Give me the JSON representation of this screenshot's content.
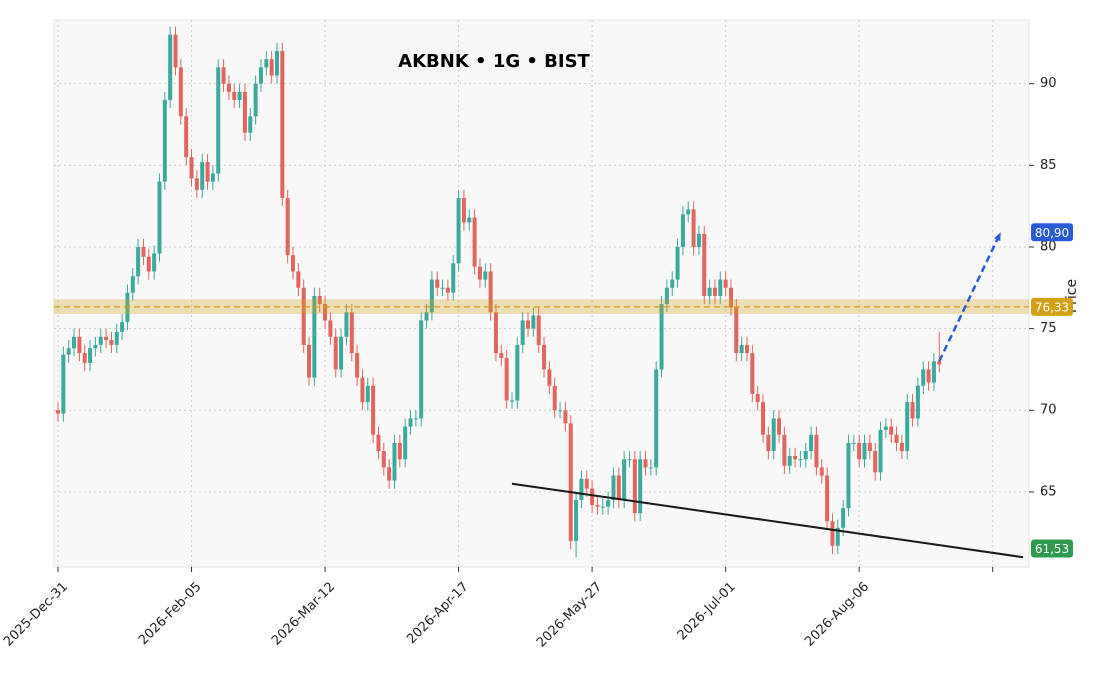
{
  "chart_data": {
    "type": "candlestick",
    "title": "AKBNK • 1G • BIST",
    "ylabel": "Price",
    "up_color": "#3ba99c",
    "down_color": "#e0655f",
    "grid": true,
    "xlim": [
      -0.75,
      181.8
    ],
    "ylim": [
      60.4,
      93.9
    ],
    "yticks": [
      65,
      70,
      75,
      80,
      85,
      90
    ],
    "xticks": [
      0,
      25,
      50,
      75,
      100,
      125,
      150,
      175
    ],
    "categories": [
      "2025-Dec-31",
      null,
      null,
      null,
      null,
      null,
      null,
      null,
      null,
      null,
      null,
      null,
      null,
      null,
      null,
      null,
      null,
      null,
      null,
      null,
      null,
      null,
      null,
      null,
      null,
      "2026-Feb-05",
      null,
      null,
      null,
      null,
      null,
      null,
      null,
      null,
      null,
      null,
      null,
      null,
      null,
      null,
      null,
      null,
      null,
      null,
      null,
      null,
      null,
      null,
      null,
      null,
      "2026-Mar-12",
      null,
      null,
      null,
      null,
      null,
      null,
      null,
      null,
      null,
      null,
      null,
      null,
      null,
      null,
      null,
      null,
      null,
      null,
      null,
      null,
      null,
      null,
      null,
      null,
      "2026-Apr-17",
      null,
      null,
      null,
      null,
      null,
      null,
      null,
      null,
      null,
      null,
      null,
      null,
      null,
      null,
      null,
      null,
      null,
      null,
      null,
      null,
      null,
      null,
      null,
      null,
      "2026-May-27",
      null,
      null,
      null,
      null,
      null,
      null,
      null,
      null,
      null,
      null,
      null,
      null,
      null,
      null,
      null,
      null,
      null,
      null,
      null,
      null,
      null,
      null,
      null,
      null,
      "2026-Jul-01",
      null,
      null,
      null,
      null,
      null,
      null,
      null,
      null,
      null,
      null,
      null,
      null,
      null,
      null,
      null,
      null,
      null,
      null,
      null,
      null,
      null,
      null,
      null,
      null,
      "2026-Aug-06",
      null,
      null,
      null,
      null,
      null,
      null,
      null,
      null,
      null,
      null,
      null,
      null,
      null,
      null,
      null
    ],
    "open": [
      70,
      69.8,
      73.4,
      73.8,
      74.5,
      73.5,
      72.9,
      73.8,
      74,
      74.5,
      74.3,
      74,
      74.8,
      75.4,
      77.2,
      78.2,
      80,
      79.4,
      78.5,
      79.6,
      84,
      89,
      93,
      91,
      88,
      85.5,
      84.2,
      83.5,
      85.2,
      84,
      84.5,
      91,
      90,
      89.5,
      89,
      89.5,
      87,
      88,
      90,
      91,
      91.5,
      90.5,
      92,
      83,
      79.5,
      78.5,
      77.5,
      74,
      72,
      77,
      76.5,
      75.5,
      74.5,
      72.5,
      74.5,
      76,
      73.5,
      72,
      70.5,
      71.5,
      68.5,
      67.5,
      66.5,
      65.7,
      68,
      67,
      69,
      69.5,
      69.5,
      75.5,
      76,
      78,
      77.5,
      77.5,
      77.2,
      79,
      83,
      81.5,
      81.8,
      78.8,
      78,
      78.5,
      76,
      73.5,
      73.2,
      70.6,
      70.6,
      74,
      75.5,
      75,
      75.8,
      74,
      72.5,
      71.5,
      70,
      70,
      69.2,
      62,
      64.5,
      65.8,
      65.2,
      64.2,
      64.1,
      64.1,
      64.5,
      66,
      64.5,
      67,
      67,
      63.7,
      67,
      66.5,
      66.5,
      72.5,
      76.5,
      77.5,
      78,
      80,
      82,
      82.3,
      80,
      80.8,
      77,
      77.5,
      77,
      78,
      77.5,
      76.3,
      73.5,
      74,
      73.5,
      71,
      70.5,
      68.5,
      67.5,
      69.5,
      68.5,
      66.6,
      67.2,
      67,
      67,
      67.5,
      68.5,
      66.5,
      66,
      63.2,
      61.7,
      62.8,
      64,
      68,
      68,
      67,
      68,
      67.5,
      66.2,
      68.8,
      69,
      68.5,
      68,
      67.5,
      70.5,
      69.5,
      71.5,
      72.5,
      71.7,
      73
    ],
    "high": [
      70.5,
      73.9,
      74.3,
      75,
      75,
      74,
      74.3,
      74.5,
      75,
      75,
      74.8,
      75.3,
      75.9,
      77.7,
      78.7,
      80.5,
      80.5,
      79.9,
      80.1,
      84.5,
      89.5,
      93.5,
      93.5,
      91.5,
      88.5,
      86,
      84.7,
      85.7,
      85.7,
      85,
      91.5,
      91.5,
      90.5,
      90,
      90,
      90,
      88.5,
      90.5,
      91.5,
      92,
      92,
      92.5,
      92.5,
      83.5,
      80,
      79,
      78,
      74.5,
      77.5,
      77.5,
      77,
      76,
      75,
      75,
      76.5,
      76.5,
      74,
      72.5,
      72,
      72,
      69,
      68,
      67,
      68.5,
      68.5,
      69.5,
      70,
      70,
      76,
      76.5,
      78.5,
      78.5,
      78,
      78,
      79.5,
      83.5,
      83.5,
      82.3,
      82.3,
      79.3,
      79,
      79,
      76.5,
      74,
      73.7,
      71.1,
      74.5,
      76,
      76,
      76.3,
      76.3,
      74.5,
      73,
      72,
      70.5,
      70.5,
      69.7,
      65,
      66.3,
      66.3,
      65.7,
      64.7,
      64.6,
      65,
      66.5,
      66.5,
      67.5,
      67.5,
      67.5,
      67.5,
      67.5,
      67,
      73,
      77,
      78,
      78.5,
      80.5,
      82.5,
      82.8,
      82.8,
      81.3,
      81.3,
      78,
      78,
      78.5,
      78.5,
      78,
      76.8,
      74.5,
      74.5,
      74,
      71.5,
      71,
      69,
      70,
      70,
      69,
      67.7,
      67.7,
      67.5,
      68,
      69,
      69,
      67,
      66.5,
      63.7,
      63.3,
      64.5,
      68.5,
      68.5,
      68.5,
      68.5,
      68.5,
      68,
      69.3,
      69.5,
      69.5,
      69,
      68.5,
      71,
      71,
      72,
      73,
      73,
      73.5,
      74.8
    ],
    "low": [
      69.3,
      69.3,
      72.9,
      73.3,
      73,
      72.4,
      72.4,
      73.3,
      73.5,
      73.8,
      73.5,
      73.5,
      74.3,
      74.9,
      76.7,
      77.7,
      78.9,
      78,
      78,
      79.1,
      83.5,
      88.5,
      90.5,
      87.5,
      85,
      83.7,
      83,
      83,
      83.5,
      83.5,
      84,
      89.5,
      89,
      88.5,
      88.5,
      86.5,
      86.5,
      87.5,
      89.5,
      90.5,
      90,
      90,
      82.5,
      79,
      78,
      77,
      73.5,
      71.5,
      71.5,
      76,
      75,
      74,
      72,
      72,
      74,
      73,
      71.5,
      70,
      70,
      68,
      67,
      66,
      65.2,
      65.2,
      66.5,
      66.5,
      68.5,
      69,
      69,
      75,
      75.5,
      77,
      77,
      76.7,
      76.7,
      78.5,
      81,
      81,
      78.3,
      77.5,
      77.5,
      75.5,
      73,
      72.7,
      70.1,
      70.1,
      70.1,
      73.5,
      74.5,
      74.5,
      73.5,
      72,
      71,
      69.5,
      69.5,
      68.7,
      61.5,
      61,
      64,
      64.7,
      63.7,
      63.6,
      63.6,
      63.6,
      64,
      64,
      64,
      66.5,
      63.2,
      63.2,
      66,
      66,
      66,
      72,
      76,
      77,
      77.5,
      79.5,
      81.5,
      79.5,
      79.5,
      76.5,
      76.5,
      76.5,
      76.5,
      77,
      75.8,
      73,
      73,
      73,
      70.5,
      70,
      68,
      67,
      67,
      68,
      66.1,
      66.1,
      66.5,
      66.5,
      66.5,
      67,
      66,
      65.5,
      62.7,
      61.2,
      61.2,
      62.3,
      63.5,
      67.5,
      66.5,
      66.5,
      67,
      65.7,
      65.7,
      68.3,
      68,
      67.5,
      67,
      67,
      69,
      69,
      71,
      71.2,
      71.2,
      72.3
    ],
    "close": [
      69.8,
      73.4,
      73.8,
      74.5,
      73.5,
      72.9,
      73.8,
      74,
      74.5,
      74.3,
      74,
      74.8,
      75.4,
      77.2,
      78.2,
      80,
      79.4,
      78.5,
      79.6,
      84,
      89,
      93,
      91,
      88,
      85.5,
      84.2,
      83.5,
      85.2,
      84,
      84.5,
      91,
      90,
      89.5,
      89,
      89.5,
      87,
      88,
      90,
      91,
      91.5,
      90.5,
      92,
      83,
      79.5,
      78.5,
      77.5,
      74,
      72,
      77,
      76.5,
      75.5,
      74.5,
      72.5,
      74.5,
      76,
      73.5,
      72,
      70.5,
      71.5,
      68.5,
      67.5,
      66.5,
      65.7,
      68,
      67,
      69,
      69.5,
      69.5,
      75.5,
      76,
      78,
      77.5,
      77.5,
      77.2,
      79,
      83,
      81.5,
      81.8,
      78.8,
      78,
      78.5,
      76,
      73.5,
      73.2,
      70.6,
      70.6,
      74,
      75.5,
      75,
      75.8,
      74,
      72.5,
      71.5,
      70,
      70,
      69.2,
      62,
      64.5,
      65.8,
      65.2,
      64.2,
      64.1,
      64.1,
      64.5,
      66,
      64.5,
      67,
      67,
      63.7,
      67,
      66.5,
      66.5,
      72.5,
      76.5,
      77.5,
      78,
      80,
      82,
      82.3,
      80,
      80.8,
      77,
      77.5,
      77,
      78,
      77.5,
      76.3,
      73.5,
      74,
      73.5,
      71,
      70.5,
      68.5,
      67.5,
      69.5,
      68.5,
      66.6,
      67.2,
      67,
      67,
      67.5,
      68.5,
      66.5,
      66,
      63.2,
      61.7,
      62.8,
      64,
      68,
      68,
      67,
      68,
      67.5,
      66.2,
      68.8,
      69,
      68.5,
      68,
      67.5,
      70.5,
      69.5,
      71.5,
      72.5,
      71.7,
      73,
      72.8
    ],
    "level": {
      "value": 76.33,
      "label": "76,33",
      "band": [
        75.9,
        76.8
      ],
      "color": "#d4a017"
    },
    "target": {
      "x": [
        165,
        176.5
      ],
      "y": [
        73,
        80.9
      ],
      "value": 80.9,
      "label": "80,90",
      "color": "#2a5bd7"
    },
    "trendline": {
      "x": [
        85,
        180.7
      ],
      "y": [
        65.5,
        61.0
      ],
      "value": 61.53,
      "label": "61,53",
      "color": "#1a1a1a",
      "badge_color": "#2e9a4e"
    }
  }
}
